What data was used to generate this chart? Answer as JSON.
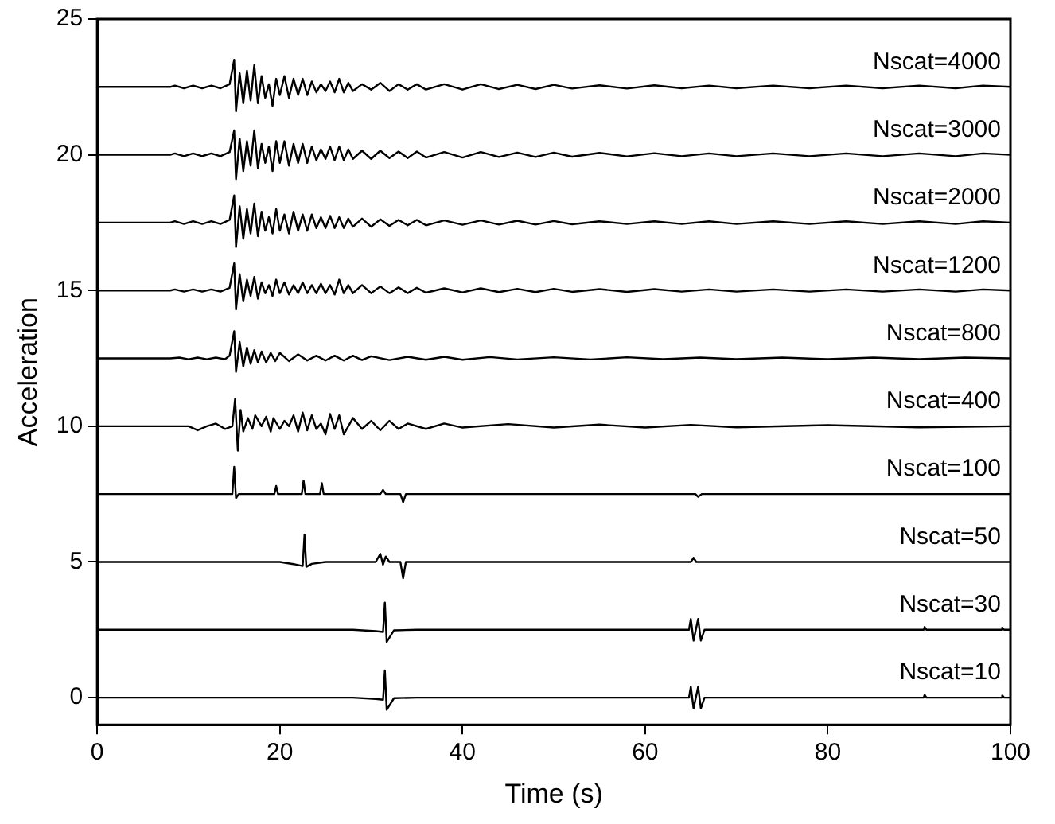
{
  "chart_data": {
    "type": "line",
    "xlabel": "Time (s)",
    "ylabel": "Acceleration",
    "xlim": [
      0,
      100
    ],
    "xticks": [
      0,
      20,
      40,
      60,
      80,
      100
    ],
    "ylim": [
      -1,
      25
    ],
    "yticks": [
      0,
      5,
      10,
      15,
      20,
      25
    ],
    "legend": false,
    "marker": "none",
    "line_style": "solid",
    "series": [
      {
        "name": "Nscat=4000",
        "color": "#000000",
        "x": [
          0,
          8,
          8.5,
          9.5,
          10.5,
          11.5,
          12.5,
          13.5,
          14.5,
          15,
          15.2,
          15.6,
          16,
          16.4,
          16.8,
          17.2,
          17.6,
          18,
          18.4,
          18.8,
          19.2,
          19.6,
          20,
          20.5,
          21,
          21.5,
          22,
          22.5,
          23,
          23.5,
          24,
          24.5,
          25,
          25.5,
          26,
          26.5,
          27,
          27.5,
          28,
          29,
          30,
          31,
          32,
          33,
          34,
          35,
          36,
          38,
          40,
          42,
          44,
          46,
          48,
          50,
          52,
          55,
          58,
          61,
          64,
          67,
          70,
          74,
          78,
          82,
          86,
          90,
          94,
          97,
          100
        ],
        "values": [
          22.5,
          22.5,
          22.55,
          22.45,
          22.55,
          22.45,
          22.55,
          22.45,
          22.6,
          23.5,
          21.6,
          23,
          21.9,
          23.1,
          22,
          23.3,
          21.9,
          22.9,
          22.1,
          22.6,
          21.8,
          22.8,
          22.2,
          22.9,
          22.1,
          22.8,
          22.2,
          22.8,
          22.2,
          22.7,
          22.3,
          22.6,
          22.35,
          22.7,
          22.3,
          22.8,
          22.3,
          22.65,
          22.35,
          22.6,
          22.4,
          22.65,
          22.35,
          22.6,
          22.4,
          22.6,
          22.4,
          22.6,
          22.4,
          22.6,
          22.42,
          22.58,
          22.42,
          22.58,
          22.44,
          22.56,
          22.44,
          22.56,
          22.45,
          22.55,
          22.45,
          22.55,
          22.45,
          22.55,
          22.45,
          22.55,
          22.45,
          22.55,
          22.5
        ]
      },
      {
        "name": "Nscat=3000",
        "color": "#000000",
        "x": [
          0,
          8,
          8.5,
          9.5,
          10.5,
          11.5,
          12.5,
          13.5,
          14.5,
          15,
          15.2,
          15.6,
          16,
          16.4,
          16.8,
          17.2,
          17.6,
          18,
          18.4,
          18.8,
          19.2,
          19.6,
          20,
          20.5,
          21,
          21.5,
          22,
          22.5,
          23,
          23.5,
          24,
          24.5,
          25,
          25.5,
          26,
          26.5,
          27,
          27.5,
          28,
          29,
          30,
          31,
          32,
          33,
          34,
          35,
          36,
          38,
          40,
          42,
          44,
          46,
          48,
          50,
          52,
          55,
          58,
          61,
          64,
          67,
          70,
          74,
          78,
          82,
          86,
          90,
          94,
          97,
          100
        ],
        "values": [
          20,
          20,
          20.05,
          19.95,
          20.05,
          19.95,
          20.05,
          19.95,
          20.1,
          20.9,
          19.1,
          20.6,
          19.4,
          20.5,
          19.6,
          20.9,
          19.5,
          20.4,
          19.7,
          20.3,
          19.4,
          20.5,
          19.7,
          20.5,
          19.6,
          20.4,
          19.7,
          20.4,
          19.7,
          20.3,
          19.8,
          20.2,
          19.85,
          20.3,
          19.8,
          20.3,
          19.8,
          20.2,
          19.85,
          20.15,
          19.85,
          20.15,
          19.88,
          20.12,
          19.88,
          20.12,
          19.9,
          20.1,
          19.9,
          20.1,
          19.92,
          20.08,
          19.92,
          20.08,
          19.93,
          20.07,
          19.94,
          20.06,
          19.95,
          20.05,
          19.95,
          20.05,
          19.95,
          20.05,
          19.95,
          20.05,
          19.95,
          20.05,
          20
        ]
      },
      {
        "name": "Nscat=2000",
        "color": "#000000",
        "x": [
          0,
          8,
          8.5,
          9.5,
          10.5,
          11.5,
          12.5,
          13.5,
          14.5,
          15,
          15.2,
          15.6,
          16,
          16.4,
          16.8,
          17.2,
          17.6,
          18,
          18.4,
          18.8,
          19.2,
          19.6,
          20,
          20.5,
          21,
          21.5,
          22,
          22.5,
          23,
          23.5,
          24,
          24.5,
          25,
          25.5,
          26,
          26.5,
          27,
          27.5,
          28,
          29,
          30,
          31,
          32,
          33,
          34,
          35,
          36,
          38,
          40,
          42,
          44,
          46,
          48,
          50,
          52,
          55,
          58,
          61,
          64,
          67,
          70,
          74,
          78,
          82,
          86,
          90,
          94,
          97,
          100
        ],
        "values": [
          17.5,
          17.5,
          17.55,
          17.45,
          17.55,
          17.45,
          17.55,
          17.45,
          17.6,
          18.5,
          16.6,
          18.1,
          16.9,
          18,
          17.1,
          18.2,
          17,
          17.9,
          17.2,
          17.7,
          17.1,
          18,
          17.2,
          17.8,
          17.1,
          17.9,
          17.2,
          17.8,
          17.2,
          17.8,
          17.3,
          17.7,
          17.3,
          17.75,
          17.3,
          17.7,
          17.3,
          17.65,
          17.35,
          17.65,
          17.35,
          17.62,
          17.38,
          17.6,
          17.4,
          17.6,
          17.4,
          17.58,
          17.42,
          17.58,
          17.43,
          17.57,
          17.43,
          17.56,
          17.44,
          17.55,
          17.45,
          17.55,
          17.45,
          17.55,
          17.45,
          17.55,
          17.45,
          17.55,
          17.45,
          17.55,
          17.45,
          17.55,
          17.5
        ]
      },
      {
        "name": "Nscat=1200",
        "color": "#000000",
        "x": [
          0,
          8,
          8.5,
          9.5,
          10.5,
          11.5,
          12.5,
          13.5,
          14.5,
          15,
          15.2,
          15.6,
          16,
          16.4,
          16.8,
          17.2,
          17.6,
          18,
          18.4,
          18.8,
          19.2,
          19.6,
          20,
          20.5,
          21,
          21.5,
          22,
          22.5,
          23,
          23.5,
          24,
          24.5,
          25,
          25.5,
          26,
          26.5,
          27,
          27.5,
          28,
          29,
          30,
          31,
          32,
          33,
          34,
          35,
          36,
          38,
          40,
          42,
          44,
          46,
          48,
          50,
          52,
          55,
          58,
          61,
          64,
          67,
          70,
          74,
          78,
          82,
          86,
          90,
          94,
          97,
          100
        ],
        "values": [
          15,
          15,
          15.04,
          14.96,
          15.04,
          14.96,
          15.04,
          14.96,
          15.1,
          16,
          14.3,
          15.6,
          14.6,
          15.4,
          14.8,
          15.5,
          14.7,
          15.3,
          14.9,
          15.2,
          14.8,
          15.4,
          14.9,
          15.3,
          14.85,
          15.2,
          14.9,
          15.3,
          14.9,
          15.2,
          14.9,
          15.25,
          14.9,
          15.2,
          14.85,
          15.4,
          14.9,
          15.2,
          14.9,
          15.2,
          14.9,
          15.15,
          14.9,
          15.12,
          14.9,
          15.1,
          14.92,
          15.08,
          14.93,
          15.08,
          14.94,
          15.06,
          14.94,
          15.06,
          14.95,
          15.05,
          14.95,
          15.05,
          14.96,
          15.04,
          14.96,
          15.04,
          14.96,
          15.04,
          14.96,
          15.04,
          14.96,
          15.04,
          15
        ]
      },
      {
        "name": "Nscat=800",
        "color": "#000000",
        "x": [
          0,
          8,
          9,
          10,
          11,
          12,
          13,
          14,
          14.5,
          15,
          15.2,
          15.6,
          16,
          16.4,
          16.8,
          17.2,
          17.6,
          18,
          18.5,
          19,
          19.5,
          20,
          21,
          22,
          23,
          24,
          25,
          26,
          27,
          28,
          29,
          30,
          32,
          34,
          36,
          38,
          40,
          43,
          46,
          50,
          54,
          58,
          62,
          66,
          70,
          75,
          80,
          85,
          90,
          95,
          100
        ],
        "values": [
          12.5,
          12.5,
          12.53,
          12.47,
          12.53,
          12.47,
          12.53,
          12.47,
          12.6,
          13.5,
          12,
          13.1,
          12.2,
          12.9,
          12.3,
          12.8,
          12.35,
          12.75,
          12.35,
          12.7,
          12.4,
          12.7,
          12.4,
          12.65,
          12.42,
          12.6,
          12.42,
          12.6,
          12.42,
          12.6,
          12.44,
          12.58,
          12.44,
          12.56,
          12.45,
          12.56,
          12.45,
          12.55,
          12.46,
          12.54,
          12.46,
          12.54,
          12.47,
          12.53,
          12.47,
          12.53,
          12.47,
          12.53,
          12.47,
          12.53,
          12.5
        ]
      },
      {
        "name": "Nscat=400",
        "color": "#000000",
        "x": [
          0,
          8,
          10,
          11,
          12,
          13,
          14,
          14.8,
          15.1,
          15.4,
          15.7,
          16,
          16.5,
          17,
          17.3,
          18,
          18.5,
          19,
          19.3,
          20,
          20.5,
          21,
          21.5,
          22,
          22.5,
          23,
          23.5,
          24,
          24.5,
          25,
          25.5,
          26,
          26.5,
          27,
          28,
          29,
          30,
          31,
          32,
          33,
          34,
          36,
          38,
          40,
          45,
          50,
          55,
          60,
          65,
          70,
          80,
          90,
          100
        ],
        "values": [
          10,
          10,
          10,
          9.85,
          10,
          10.1,
          9.9,
          10,
          11,
          9.1,
          10.6,
          9.8,
          10.3,
          9.9,
          10.4,
          10,
          10.35,
          9.8,
          10.3,
          9.9,
          10.2,
          10,
          10.4,
          9.8,
          10.5,
          9.85,
          10.4,
          9.9,
          10.1,
          9.7,
          10.45,
          9.9,
          10.4,
          9.7,
          10.3,
          9.9,
          10.2,
          9.85,
          10.2,
          9.9,
          10.1,
          9.9,
          10.1,
          9.95,
          10.08,
          9.95,
          10.06,
          9.95,
          10.05,
          9.96,
          10.04,
          9.96,
          10
        ]
      },
      {
        "name": "Nscat=100",
        "color": "#000000",
        "x": [
          0,
          8,
          14.8,
          15,
          15.2,
          15.5,
          19.4,
          19.6,
          19.8,
          22.4,
          22.6,
          22.8,
          24.4,
          24.6,
          24.8,
          31,
          31.3,
          31.6,
          33.2,
          33.5,
          33.8,
          60,
          65.5,
          65.8,
          66.2,
          100
        ],
        "values": [
          7.5,
          7.5,
          7.5,
          8.5,
          7.35,
          7.5,
          7.5,
          7.8,
          7.5,
          7.5,
          8,
          7.5,
          7.5,
          7.9,
          7.5,
          7.5,
          7.65,
          7.5,
          7.5,
          7.2,
          7.5,
          7.5,
          7.5,
          7.4,
          7.5,
          7.5
        ]
      },
      {
        "name": "Nscat=50",
        "color": "#000000",
        "x": [
          0,
          8,
          20,
          21.5,
          22.5,
          22.7,
          22.9,
          23.5,
          25,
          30.5,
          31,
          31.3,
          31.6,
          32,
          33.2,
          33.5,
          33.8,
          60,
          65,
          65.3,
          65.6,
          100
        ],
        "values": [
          5,
          5,
          5,
          4.92,
          4.85,
          6,
          4.82,
          4.93,
          5,
          5,
          5.3,
          4.9,
          5.2,
          5,
          5,
          4.4,
          5,
          5,
          5,
          5.15,
          5,
          5
        ]
      },
      {
        "name": "Nscat=30",
        "color": "#000000",
        "x": [
          0,
          28,
          30.5,
          31.3,
          31.5,
          31.7,
          32.5,
          35,
          64.8,
          65,
          65.3,
          65.8,
          66.1,
          66.5,
          90.5,
          90.6,
          90.8,
          99,
          99.1,
          99.3,
          100
        ],
        "values": [
          2.5,
          2.5,
          2.45,
          2.42,
          3.5,
          2.05,
          2.48,
          2.5,
          2.5,
          2.9,
          2.1,
          2.9,
          2.1,
          2.5,
          2.5,
          2.6,
          2.5,
          2.5,
          2.58,
          2.5,
          2.5
        ]
      },
      {
        "name": "Nscat=10",
        "color": "#000000",
        "x": [
          0,
          28,
          30.5,
          31.3,
          31.5,
          31.7,
          32.5,
          35,
          64.8,
          65,
          65.3,
          65.8,
          66.1,
          66.5,
          90.5,
          90.6,
          90.8,
          99,
          99.1,
          99.3,
          100
        ],
        "values": [
          0,
          0,
          -0.05,
          -0.08,
          1,
          -0.45,
          -0.02,
          0,
          0,
          0.4,
          -0.4,
          0.4,
          -0.4,
          0,
          0,
          0.1,
          0,
          0,
          0.08,
          0,
          0
        ]
      }
    ]
  }
}
